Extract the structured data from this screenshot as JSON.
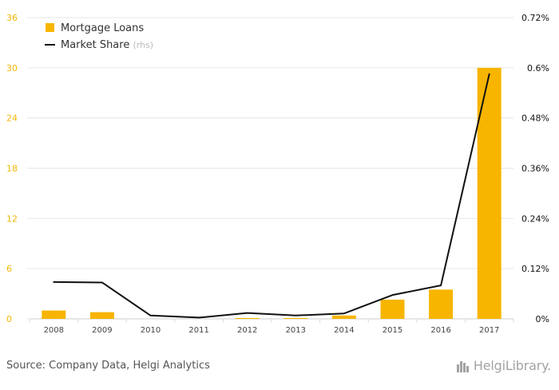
{
  "colors": {
    "bar": "#F7B500",
    "line": "#111111",
    "grid": "#e7e7e7",
    "left_tick": "#F2B705",
    "right_tick": "#111111",
    "x_tick": "#444444",
    "legend_rhs": "#bbbbbb"
  },
  "footer": {
    "source": "Source: Company Data, Helgi Analytics",
    "brand": "HelgiLibrary."
  },
  "legend": {
    "items": [
      {
        "label": "Mortgage Loans",
        "type": "bar"
      },
      {
        "label": "Market Share",
        "suffix": "(rhs)",
        "type": "line"
      }
    ]
  },
  "chart_data": {
    "type": "bar",
    "categories": [
      "2008",
      "2009",
      "2010",
      "2011",
      "2012",
      "2013",
      "2014",
      "2015",
      "2016",
      "2017"
    ],
    "series": [
      {
        "name": "Mortgage Loans",
        "type": "bar",
        "axis": "left",
        "values": [
          1.0,
          0.8,
          0.0,
          0.0,
          0.1,
          0.1,
          0.4,
          2.3,
          3.5,
          30.0
        ]
      },
      {
        "name": "Market Share",
        "type": "line",
        "axis": "right",
        "values": [
          0.088,
          0.087,
          0.008,
          0.003,
          0.014,
          0.008,
          0.013,
          0.057,
          0.08,
          0.585
        ]
      }
    ],
    "y_left": {
      "min": 0,
      "max": 36,
      "ticks": [
        "0",
        "6",
        "12",
        "18",
        "24",
        "30",
        "36"
      ]
    },
    "y_right": {
      "min": 0,
      "max": 0.72,
      "ticks": [
        "0%",
        "0.12%",
        "0.24%",
        "0.36%",
        "0.48%",
        "0.6%",
        "0.72%"
      ]
    },
    "grid": true,
    "legend_placement": "top-left"
  }
}
